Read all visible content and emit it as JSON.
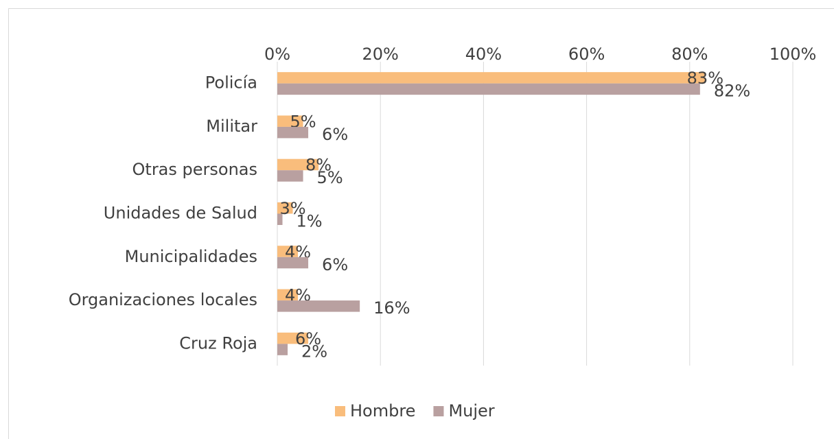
{
  "chart_data": {
    "type": "hbar",
    "categories": [
      "Policía",
      "Militar",
      "Otras personas",
      "Unidades de Salud",
      "Municipalidades",
      "Organizaciones locales",
      "Cruz Roja"
    ],
    "series": [
      {
        "name": "Hombre",
        "color": "#f9bd7c",
        "values": [
          83,
          5,
          8,
          3,
          4,
          4,
          6
        ],
        "value_labels": [
          "83%",
          "5%",
          "8%",
          "3%",
          "4%",
          "4%",
          "6%"
        ]
      },
      {
        "name": "Mujer",
        "color": "#b9a0a0",
        "values": [
          82,
          6,
          5,
          1,
          6,
          16,
          2
        ],
        "value_labels": [
          "82%",
          "6%",
          "5%",
          "1%",
          "6%",
          "16%",
          "2%"
        ]
      }
    ],
    "xlim": [
      0,
      100
    ],
    "xticks": [
      {
        "value": 0,
        "label": "0%"
      },
      {
        "value": 20,
        "label": "20%"
      },
      {
        "value": 40,
        "label": "40%"
      },
      {
        "value": 60,
        "label": "60%"
      },
      {
        "value": 80,
        "label": "80%"
      },
      {
        "value": 100,
        "label": "100%"
      }
    ],
    "grid": true,
    "legend": "bottom"
  }
}
